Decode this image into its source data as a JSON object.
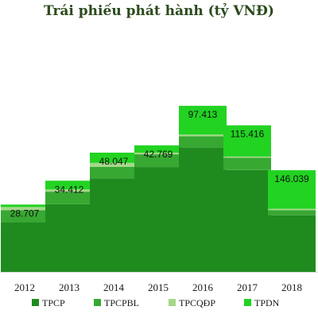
{
  "chart_data": {
    "type": "bar",
    "stacked": true,
    "title": "Trái phiếu phát hành (tỷ VNĐ)",
    "xlabel": "",
    "ylabel": "",
    "categories": [
      "2012",
      "2013",
      "2014",
      "2015",
      "2016",
      "2017",
      "2018"
    ],
    "series": [
      {
        "name": "TPCP",
        "color": "#1f8b1f",
        "values": [
          10200,
          13900,
          19200,
          21500,
          25500,
          20900,
          11600
        ]
      },
      {
        "name": "TPCPBL",
        "color": "#37a832",
        "values": [
          2450,
          2550,
          2350,
          2600,
          2300,
          2500,
          1050
        ]
      },
      {
        "name": "TPCQĐP",
        "color": "#a4d888",
        "values": [
          650,
          450,
          800,
          350,
          350,
          250,
          300
        ]
      },
      {
        "name": "TPDN",
        "color": "#22d322",
        "values": [
          500,
          1800,
          2100,
          1500,
          5900,
          6400,
          7900
        ]
      }
    ],
    "data_labels": [
      "28.707",
      "34.412",
      "48.047",
      "42.769",
      "97.413",
      "115.416",
      "146.039"
    ],
    "ylim": [
      0,
      37000
    ],
    "grid": false,
    "legend_position": "bottom"
  }
}
